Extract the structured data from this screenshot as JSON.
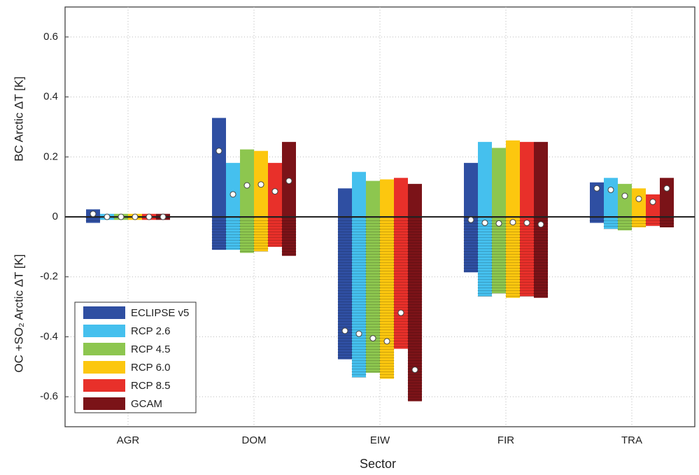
{
  "chart_data": {
    "type": "floating_bar",
    "y_label_top": "BC Arctic ΔT [K]",
    "y_label_bottom": "OC +SO₂ Arctic ΔT [K]",
    "x_label": "Sector",
    "categories": [
      "AGR",
      "DOM",
      "EIW",
      "FIR",
      "TRA"
    ],
    "ylim": [
      -0.7,
      0.7
    ],
    "yticks": [
      -0.6,
      -0.4,
      -0.2,
      0,
      0.2,
      0.4,
      0.6
    ],
    "grid": true,
    "legend": "lower left",
    "series": [
      {
        "name": "ECLIPSE v5",
        "color": "#2f4fa2",
        "bc": [
          0.025,
          0.33,
          0.095,
          0.18,
          0.115
        ],
        "oc": [
          -0.02,
          -0.11,
          -0.475,
          -0.185,
          -0.02
        ],
        "net": [
          0.01,
          0.22,
          -0.38,
          -0.01,
          0.095
        ]
      },
      {
        "name": "RCP 2.6",
        "color": "#45c0ee",
        "bc": [
          0.01,
          0.18,
          0.15,
          0.25,
          0.13
        ],
        "oc": [
          -0.01,
          -0.11,
          -0.535,
          -0.265,
          -0.04
        ],
        "net": [
          0,
          0.075,
          -0.39,
          -0.02,
          0.09
        ]
      },
      {
        "name": "RCP 4.5",
        "color": "#8dc64f",
        "bc": [
          0.01,
          0.225,
          0.12,
          0.23,
          0.11
        ],
        "oc": [
          -0.01,
          -0.12,
          -0.52,
          -0.255,
          -0.045
        ],
        "net": [
          0,
          0.105,
          -0.405,
          -0.022,
          0.07
        ]
      },
      {
        "name": "RCP 6.0",
        "color": "#fcc70f",
        "bc": [
          0.01,
          0.22,
          0.125,
          0.255,
          0.095
        ],
        "oc": [
          -0.01,
          -0.115,
          -0.54,
          -0.27,
          -0.035
        ],
        "net": [
          0,
          0.108,
          -0.415,
          -0.018,
          0.06
        ]
      },
      {
        "name": "RCP 8.5",
        "color": "#e8302a",
        "bc": [
          0.01,
          0.18,
          0.13,
          0.25,
          0.075
        ],
        "oc": [
          -0.01,
          -0.1,
          -0.44,
          -0.265,
          -0.03
        ],
        "net": [
          0,
          0.085,
          -0.32,
          -0.02,
          0.05
        ]
      },
      {
        "name": "GCAM",
        "color": "#7b1318",
        "bc": [
          0.01,
          0.25,
          0.11,
          0.25,
          0.13
        ],
        "oc": [
          -0.01,
          -0.13,
          -0.615,
          -0.27,
          -0.035
        ],
        "net": [
          0,
          0.12,
          -0.51,
          -0.025,
          0.095
        ]
      }
    ]
  }
}
